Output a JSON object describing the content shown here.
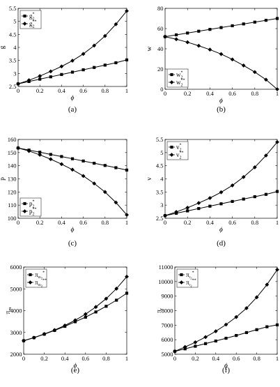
{
  "figure": {
    "panels": [
      {
        "caption": "(a)"
      },
      {
        "caption": "(b)"
      },
      {
        "caption": "(c)"
      },
      {
        "caption": "(d)"
      },
      {
        "caption": "(e)"
      },
      {
        "caption": "(f)"
      }
    ]
  },
  "chart_data": [
    {
      "type": "line",
      "caption": "(a)",
      "xlabel": "ϕ",
      "ylabel": "g",
      "xlim": [
        0,
        1
      ],
      "ylim": [
        2.5,
        5.5
      ],
      "xticks": [
        0,
        0.2,
        0.4,
        0.6,
        0.8,
        1
      ],
      "yticks": [
        2.5,
        3,
        3.5,
        4,
        4.5,
        5,
        5.5
      ],
      "legend_position": "top-left",
      "x": [
        0,
        0.1,
        0.2,
        0.3,
        0.4,
        0.5,
        0.6,
        0.7,
        0.8,
        0.9,
        1
      ],
      "series": [
        {
          "name": "g",
          "sub": "2",
          "sup": "*",
          "marker": "square",
          "values": [
            2.6,
            2.69,
            2.78,
            2.87,
            2.96,
            3.05,
            3.14,
            3.23,
            3.32,
            3.41,
            3.52
          ]
        },
        {
          "name": "g",
          "sub": "2",
          "sup": "**",
          "marker": "diamond",
          "values": [
            2.6,
            2.74,
            2.9,
            3.08,
            3.27,
            3.49,
            3.75,
            4.07,
            4.44,
            4.89,
            5.4
          ]
        }
      ]
    },
    {
      "type": "line",
      "caption": "(b)",
      "xlabel": "ϕ",
      "ylabel": "w",
      "xlim": [
        0,
        1
      ],
      "ylim": [
        0,
        80
      ],
      "xticks": [
        0,
        0.2,
        0.4,
        0.6,
        0.8,
        1
      ],
      "yticks": [
        0,
        20,
        40,
        60,
        80
      ],
      "legend_position": "bottom-left",
      "x": [
        0,
        0.1,
        0.2,
        0.3,
        0.4,
        0.5,
        0.6,
        0.7,
        0.8,
        0.9,
        1
      ],
      "series": [
        {
          "name": "w",
          "sub": "2",
          "sup": "*",
          "marker": "square",
          "values": [
            52,
            53.8,
            55.6,
            57.4,
            59.2,
            61,
            62.8,
            64.6,
            66.4,
            68.2,
            70
          ]
        },
        {
          "name": "w",
          "sub": "2",
          "sup": "**",
          "marker": "diamond",
          "values": [
            52,
            49.5,
            46.5,
            43,
            39.2,
            34.8,
            29.5,
            23.5,
            17,
            9.5,
            0
          ]
        }
      ]
    },
    {
      "type": "line",
      "caption": "(c)",
      "xlabel": "ϕ",
      "ylabel": "p",
      "xlim": [
        0,
        1
      ],
      "ylim": [
        100,
        160
      ],
      "xticks": [
        0,
        0.2,
        0.4,
        0.6,
        0.8,
        1
      ],
      "yticks": [
        100,
        110,
        120,
        130,
        140,
        150,
        160
      ],
      "legend_position": "bottom-left",
      "x": [
        0,
        0.1,
        0.2,
        0.3,
        0.4,
        0.5,
        0.6,
        0.7,
        0.8,
        0.9,
        1
      ],
      "series": [
        {
          "name": "p",
          "sub": "2",
          "sup": "*",
          "marker": "square",
          "values": [
            153.5,
            151.9,
            150.3,
            148.6,
            147,
            145.3,
            143.6,
            141.9,
            140.2,
            138.5,
            136.7
          ]
        },
        {
          "name": "p",
          "sub": "2",
          "sup": "**",
          "marker": "diamond",
          "values": [
            153.5,
            151.2,
            148.3,
            145,
            141.2,
            137,
            132.2,
            126.5,
            120,
            112,
            102.6
          ]
        }
      ]
    },
    {
      "type": "line",
      "caption": "(d)",
      "xlabel": "ϕ",
      "ylabel": "v",
      "xlim": [
        0,
        1
      ],
      "ylim": [
        2.5,
        5.5
      ],
      "xticks": [
        0,
        0.2,
        0.4,
        0.6,
        0.8,
        1
      ],
      "yticks": [
        2.5,
        3,
        3.5,
        4,
        4.5,
        5,
        5.5
      ],
      "legend_position": "top-left",
      "x": [
        0,
        0.1,
        0.2,
        0.3,
        0.4,
        0.5,
        0.6,
        0.7,
        0.8,
        0.9,
        1
      ],
      "series": [
        {
          "name": "v",
          "sub": "2",
          "sup": "*",
          "marker": "square",
          "values": [
            2.6,
            2.69,
            2.78,
            2.87,
            2.96,
            3.05,
            3.14,
            3.23,
            3.32,
            3.41,
            3.52
          ]
        },
        {
          "name": "v",
          "sub": "2",
          "sup": "**",
          "marker": "diamond",
          "values": [
            2.6,
            2.74,
            2.9,
            3.08,
            3.27,
            3.49,
            3.75,
            4.07,
            4.44,
            4.89,
            5.4
          ]
        }
      ]
    },
    {
      "type": "line",
      "caption": "(e)",
      "xlabel": "ϕ",
      "ylabel": "π",
      "ylabel_sub": "m",
      "xlim": [
        0,
        1
      ],
      "ylim": [
        2000,
        6000
      ],
      "xticks": [
        0,
        0.2,
        0.4,
        0.6,
        0.8,
        1
      ],
      "yticks": [
        2000,
        3000,
        4000,
        5000,
        6000
      ],
      "legend_position": "top-left",
      "x": [
        0,
        0.1,
        0.2,
        0.3,
        0.4,
        0.5,
        0.6,
        0.7,
        0.8,
        0.9,
        1
      ],
      "series": [
        {
          "name": "π",
          "sub": "m",
          "sub2": "2",
          "sup": "*",
          "marker": "square",
          "values": [
            2620,
            2760,
            2920,
            3090,
            3280,
            3490,
            3700,
            3940,
            4200,
            4480,
            4800
          ]
        },
        {
          "name": "π",
          "sub": "m",
          "sub2": "2",
          "sup": "**",
          "marker": "diamond",
          "values": [
            2620,
            2760,
            2930,
            3110,
            3320,
            3560,
            3840,
            4170,
            4550,
            5010,
            5560
          ]
        }
      ]
    },
    {
      "type": "line",
      "caption": "(f)",
      "xlabel": "ϕ",
      "ylabel": "π",
      "ylabel_sub": "r",
      "xlim": [
        0,
        1
      ],
      "ylim": [
        5000,
        11000
      ],
      "xticks": [
        0,
        0.2,
        0.4,
        0.6,
        0.8,
        1
      ],
      "yticks": [
        5000,
        6000,
        7000,
        8000,
        9000,
        10000,
        11000
      ],
      "legend_position": "top-left",
      "x": [
        0,
        0.1,
        0.2,
        0.3,
        0.4,
        0.5,
        0.6,
        0.7,
        0.8,
        0.9,
        1
      ],
      "series": [
        {
          "name": "π",
          "sub": "r",
          "sub2": "2",
          "sup": "*",
          "marker": "square",
          "values": [
            5200,
            5370,
            5550,
            5730,
            5910,
            6100,
            6290,
            6490,
            6690,
            6890,
            7020
          ]
        },
        {
          "name": "π",
          "sub": "r",
          "sub2": "2",
          "sup": "**",
          "marker": "diamond",
          "values": [
            5200,
            5500,
            5820,
            6180,
            6580,
            7040,
            7560,
            8170,
            8920,
            9790,
            10820
          ]
        }
      ]
    }
  ]
}
